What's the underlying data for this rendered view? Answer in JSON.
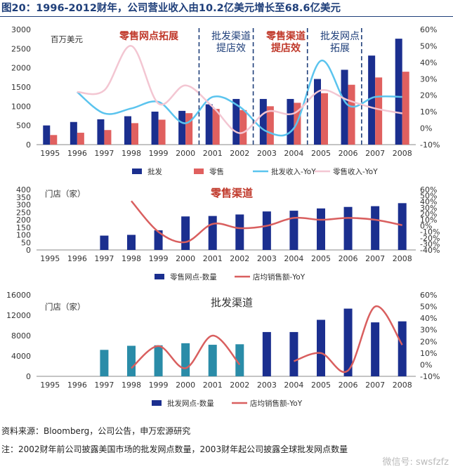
{
  "title": "图20：1996-2012财年，公司营业收入由10.2亿美元增长至68.6亿美元",
  "footer": {
    "source": "资料来源：Bloomberg，公司公告，申万宏源研究",
    "note": "注：2002财年前公司披露美国市场的批发网点数量，2003财年起公司披露全球批发网点数量",
    "watermark": "微信号: swsfzfz"
  },
  "chart_data": [
    {
      "type": "bar",
      "categories": [
        "1995",
        "1996",
        "1997",
        "1998",
        "1999",
        "2000",
        "2001",
        "2002",
        "2003",
        "2004",
        "2005",
        "2006",
        "2007",
        "2008"
      ],
      "unit_label": "百万美元",
      "ylim": [
        0,
        3000
      ],
      "yticks": [
        0,
        500,
        1000,
        1500,
        2000,
        2500,
        3000
      ],
      "y2lim": [
        -10,
        60
      ],
      "y2ticks": [
        "-10%",
        "0%",
        "10%",
        "20%",
        "30%",
        "40%",
        "50%",
        "60%"
      ],
      "series": [
        {
          "name": "批发",
          "kind": "bar",
          "color": "#1b2f8f",
          "values": [
            500,
            590,
            660,
            740,
            860,
            880,
            1050,
            1190,
            1190,
            1190,
            1710,
            1950,
            2320,
            2760
          ]
        },
        {
          "name": "零售",
          "kind": "bar",
          "color": "#e0605f",
          "values": [
            250,
            310,
            380,
            560,
            650,
            820,
            930,
            900,
            1000,
            1090,
            1340,
            1560,
            1750,
            1900
          ]
        },
        {
          "name": "批发收入-YoY",
          "kind": "line",
          "color": "#5bc4ee",
          "values": [
            null,
            22,
            9,
            12,
            16,
            3,
            19,
            13,
            -2,
            0,
            41,
            14,
            19,
            19
          ]
        },
        {
          "name": "零售收入-YoY",
          "kind": "line",
          "color": "#f3c6d2",
          "values": [
            null,
            22,
            23,
            50,
            15,
            26,
            13,
            -3,
            10,
            9,
            23,
            17,
            12,
            9
          ]
        }
      ],
      "annotations": [
        "零售网点拓展",
        "批发渠道提店效",
        "零售渠道提店效",
        "批发网点拓展"
      ]
    },
    {
      "type": "bar",
      "title": "零售渠道",
      "unit_label": "门店（家）",
      "categories": [
        "1995",
        "1996",
        "1997",
        "1998",
        "1999",
        "2000",
        "2001",
        "2002",
        "2003",
        "2004",
        "2005",
        "2006",
        "2007",
        "2008"
      ],
      "ylim": [
        0,
        400
      ],
      "yticks": [
        0,
        50,
        100,
        150,
        200,
        250,
        300,
        350,
        400
      ],
      "y2lim": [
        -40,
        60
      ],
      "y2ticks": [
        "-40%",
        "-30%",
        "-20%",
        "-10%",
        "0%",
        "10%",
        "20%",
        "30%",
        "40%",
        "50%",
        "60%"
      ],
      "series": [
        {
          "name": "零售网点-数量",
          "kind": "bar",
          "color": "#1b2f8f",
          "values": [
            null,
            null,
            95,
            100,
            130,
            222,
            225,
            235,
            255,
            260,
            275,
            285,
            290,
            310
          ]
        },
        {
          "name": "店均销售额-YoY",
          "kind": "line",
          "color": "#d95f5f",
          "values": [
            null,
            null,
            null,
            41,
            -10,
            -27,
            3,
            -4,
            0,
            13,
            10,
            13,
            10,
            1
          ]
        }
      ]
    },
    {
      "type": "bar",
      "title": "批发渠道",
      "unit_label": "门店（家）",
      "categories": [
        "1995",
        "1996",
        "1997",
        "1998",
        "1999",
        "2000",
        "2001",
        "2002",
        "2003",
        "2004",
        "2005",
        "2006",
        "2007",
        "2008"
      ],
      "ylim": [
        0,
        16000
      ],
      "yticks": [
        0,
        4000,
        8000,
        12000,
        16000
      ],
      "y2lim": [
        -10,
        60
      ],
      "y2ticks": [
        "-10%",
        "0%",
        "10%",
        "20%",
        "30%",
        "40%",
        "50%",
        "60%"
      ],
      "series": [
        {
          "name": "批发网点-数量",
          "kind": "bar",
          "color": "#1b2f8f",
          "colors": [
            null,
            null,
            "#2a8ca8",
            "#2a8ca8",
            "#2a8ca8",
            "#2a8ca8",
            "#2a8ca8",
            "#2a8ca8",
            "#1b2f8f",
            "#1b2f8f",
            "#1b2f8f",
            "#1b2f8f",
            "#1b2f8f",
            "#1b2f8f"
          ],
          "values": [
            null,
            null,
            5200,
            6000,
            6100,
            6500,
            6200,
            6300,
            8700,
            8700,
            11100,
            13300,
            10600,
            10800
          ]
        },
        {
          "name": "店均销售额-YoY",
          "kind": "line",
          "color": "#d95f5f",
          "values": [
            null,
            null,
            null,
            -3,
            16,
            -3,
            25,
            0,
            null,
            3,
            10,
            -5,
            50,
            17
          ]
        }
      ]
    }
  ]
}
